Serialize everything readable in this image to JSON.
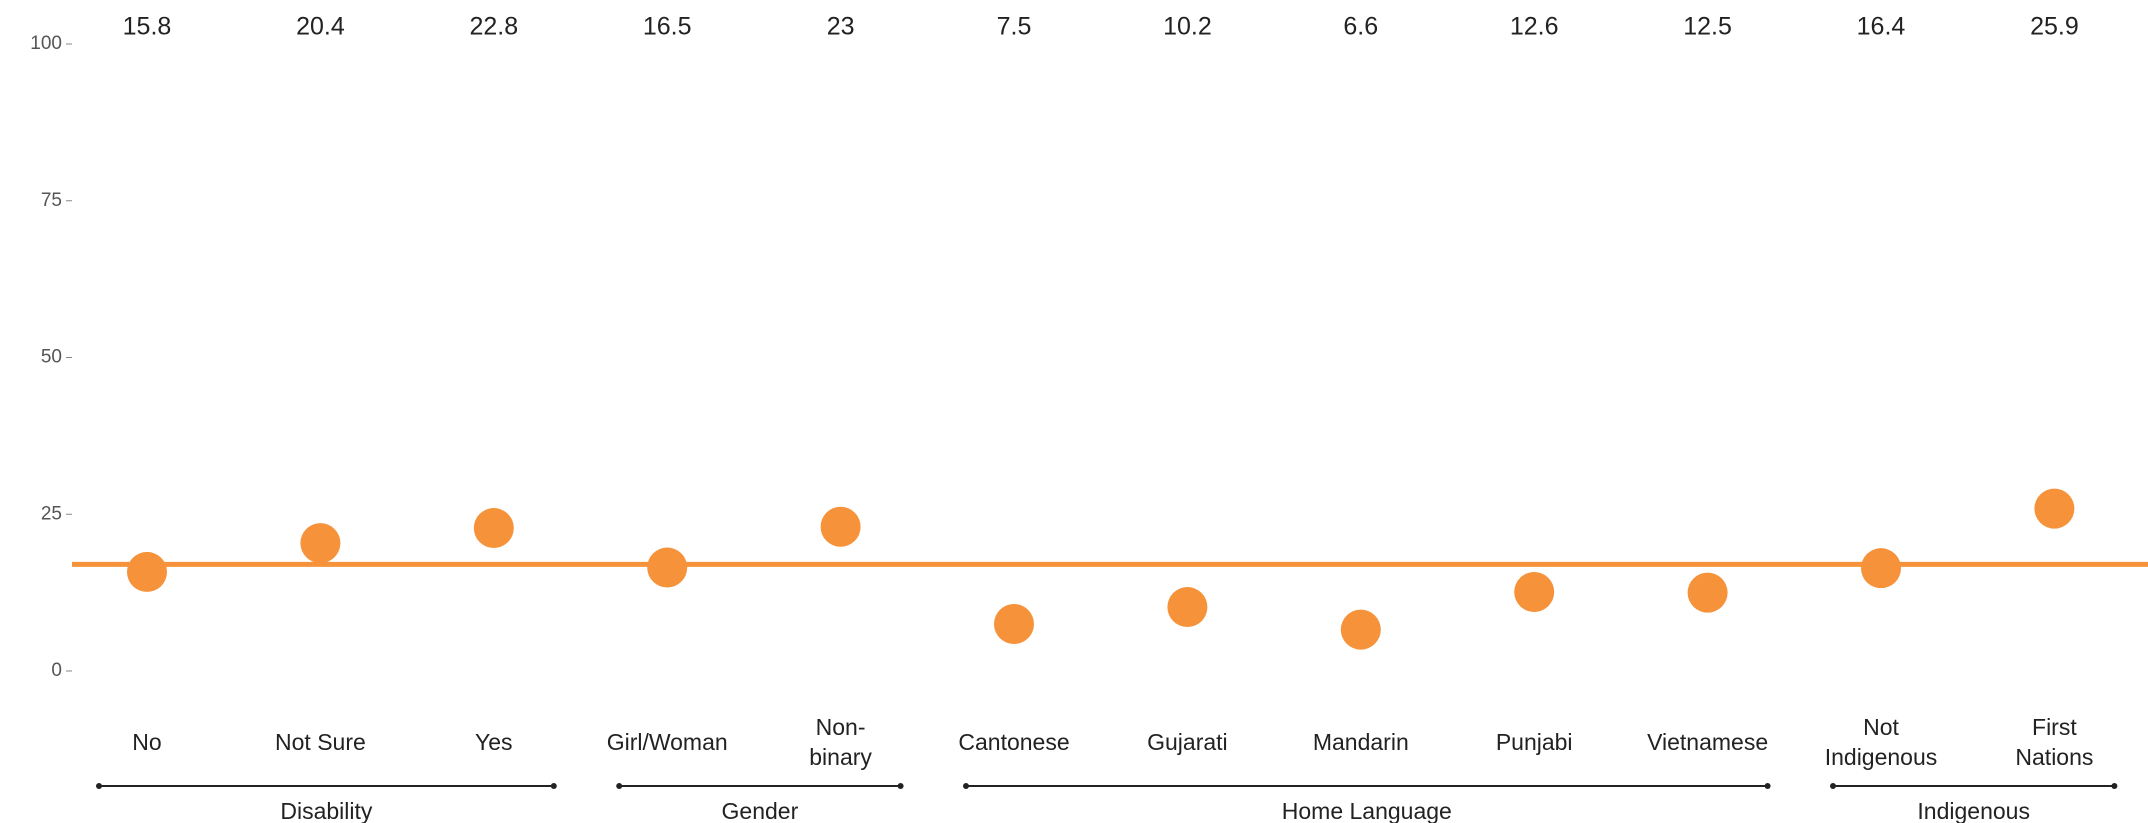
{
  "chart_data": {
    "type": "strip",
    "categories": [
      "No",
      "Not Sure",
      "Yes",
      "Girl/Woman",
      "Non-\nbinary",
      "Cantonese",
      "Gujarati",
      "Mandarin",
      "Punjabi",
      "Vietnamese",
      "Not\nIndigenous",
      "First\nNations"
    ],
    "values": [
      15.8,
      20.4,
      22.8,
      16.5,
      23,
      7.5,
      10.2,
      6.6,
      12.6,
      12.5,
      16.4,
      25.9
    ],
    "color": "#f5923a",
    "reference_line": 17,
    "groups": [
      {
        "name": "Disability",
        "start": 0,
        "end": 2
      },
      {
        "name": "Gender",
        "start": 3,
        "end": 4
      },
      {
        "name": "Home Language",
        "start": 5,
        "end": 9
      },
      {
        "name": "Indigenous",
        "start": 10,
        "end": 11
      }
    ],
    "ylim": [
      0,
      100
    ],
    "yticks": [
      0,
      25,
      50,
      75,
      100
    ],
    "grid": false
  }
}
